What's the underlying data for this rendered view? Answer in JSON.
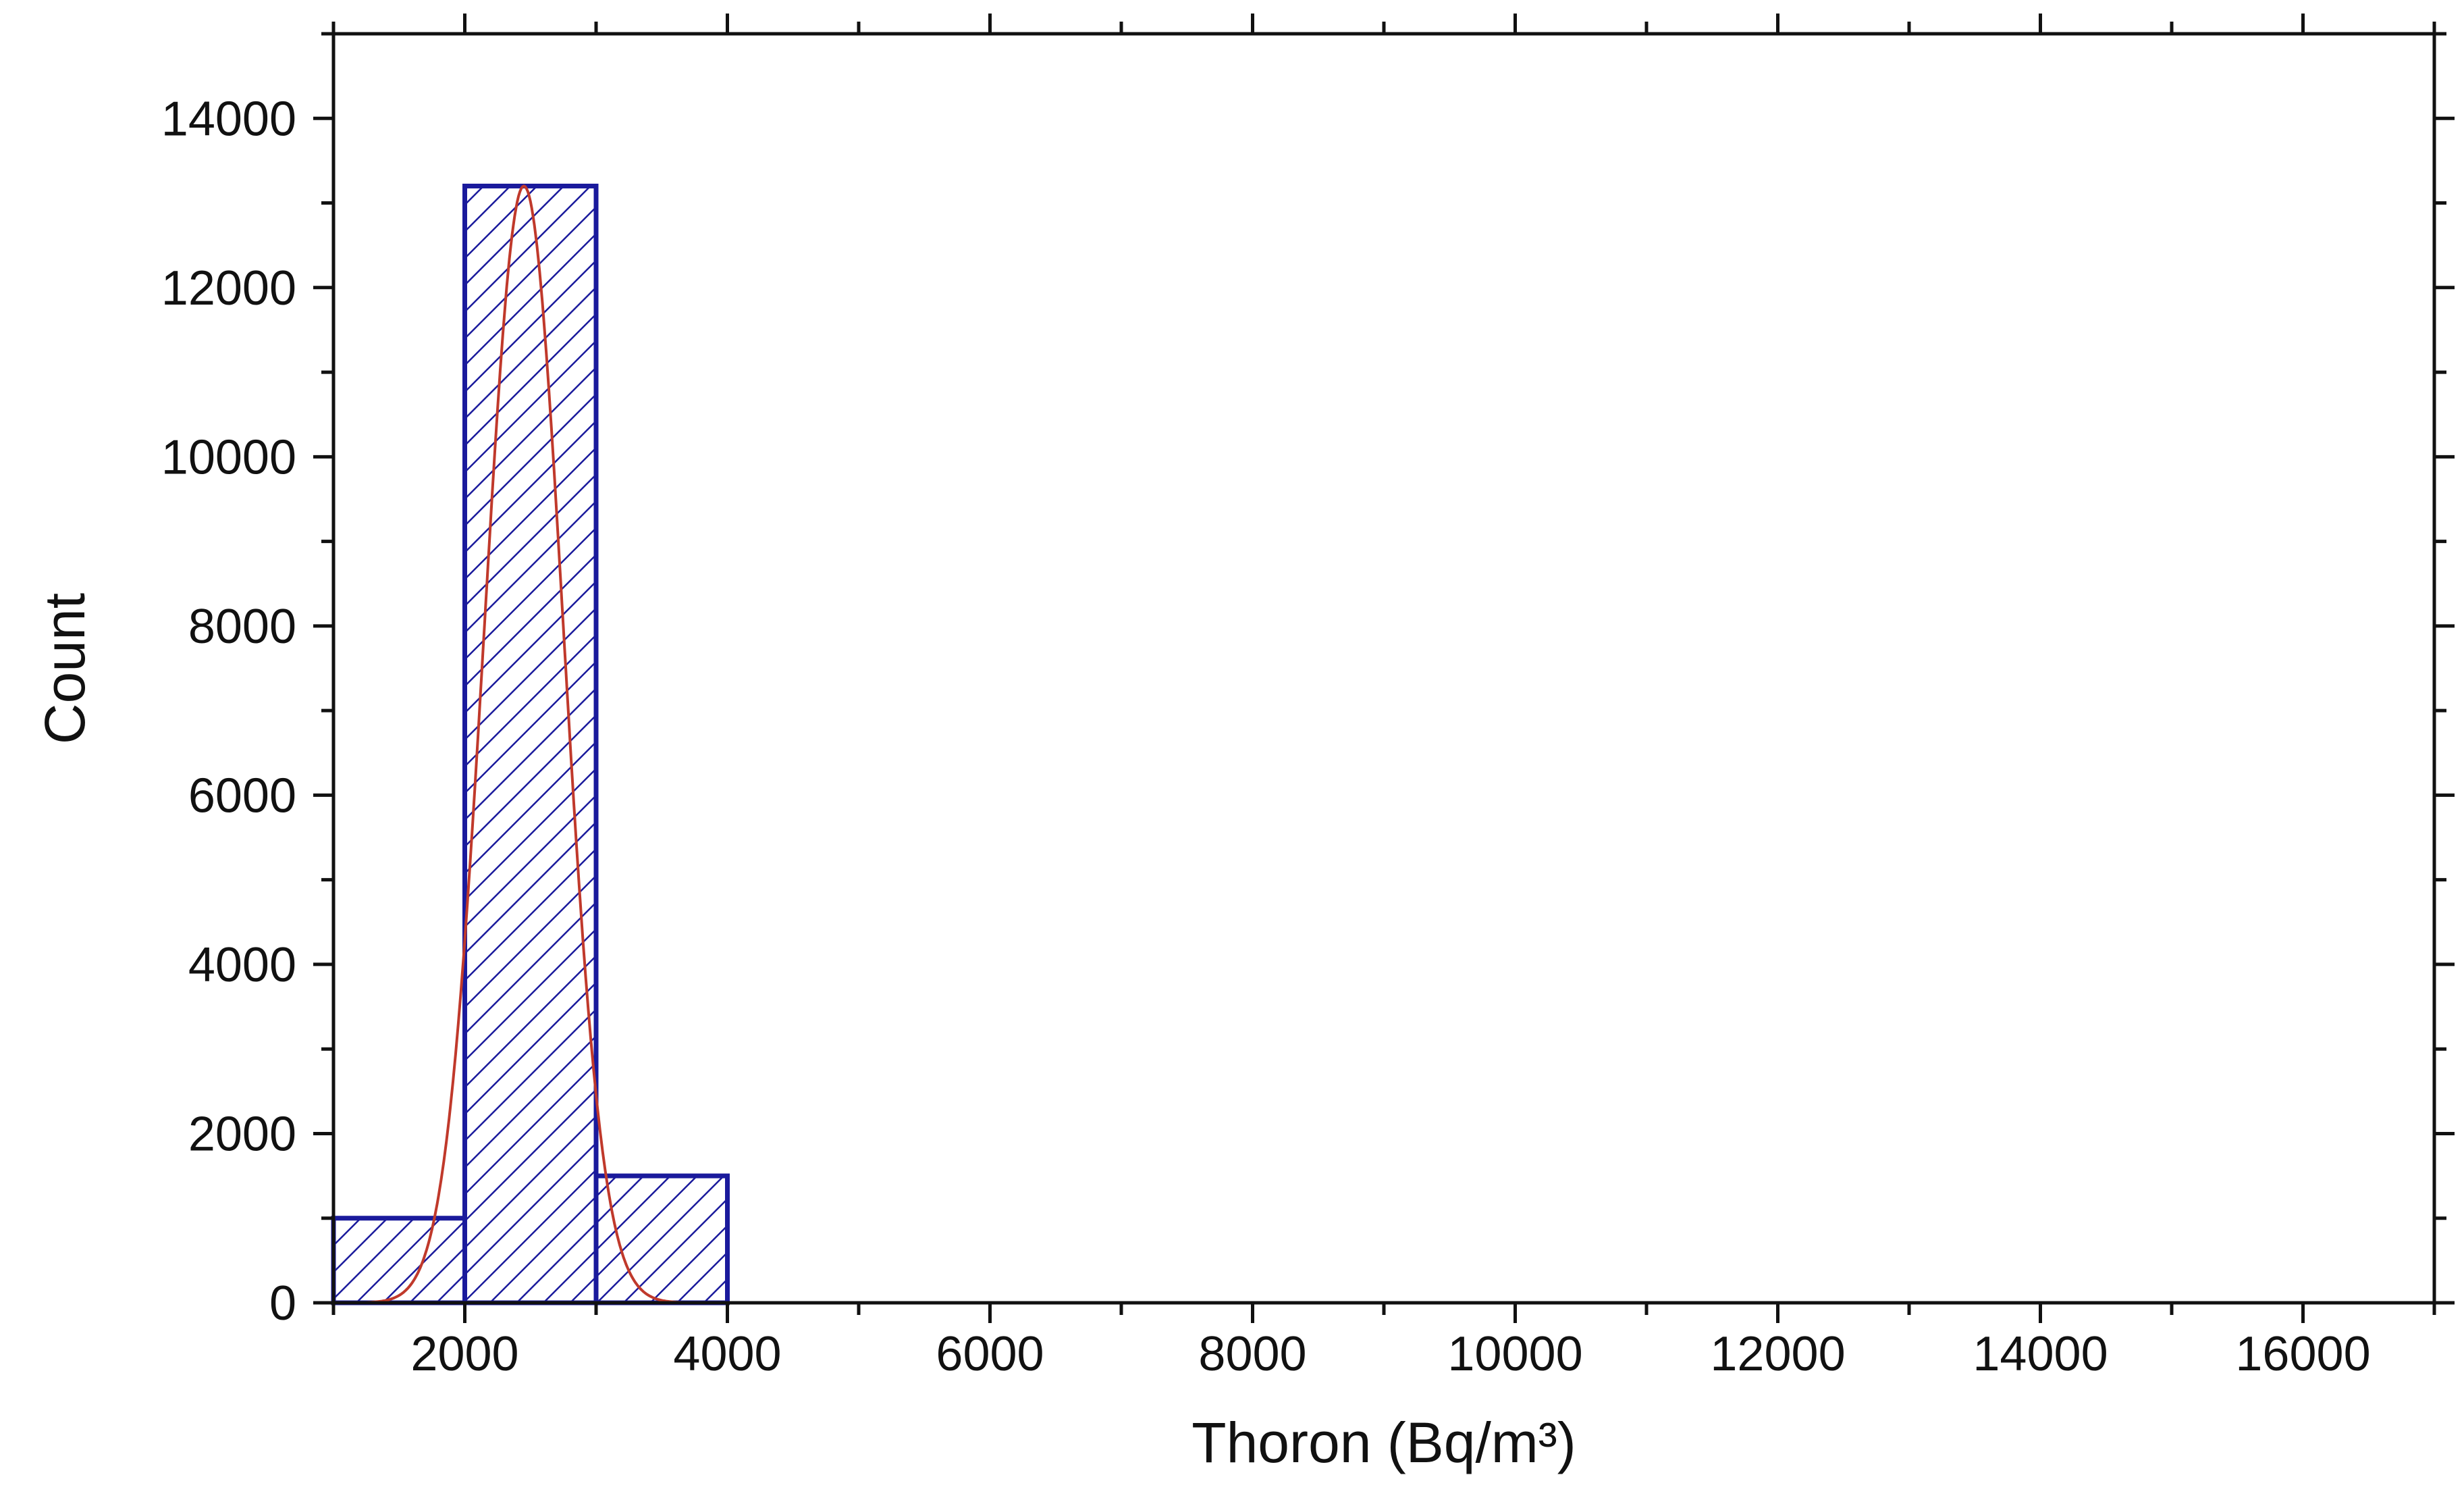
{
  "chart_data": {
    "type": "bar",
    "subtype": "histogram",
    "title": "",
    "xlabel": "Thoron (Bq/m³)",
    "ylabel": "Count",
    "xlim": [
      1000,
      17000
    ],
    "ylim": [
      0,
      15000
    ],
    "x_ticks": [
      2000,
      4000,
      6000,
      8000,
      10000,
      12000,
      14000,
      16000
    ],
    "x_tick_labels": [
      "2000",
      "4000",
      "6000",
      "8000",
      "10000",
      "12000",
      "14000",
      "16000"
    ],
    "y_ticks": [
      0,
      2000,
      4000,
      6000,
      8000,
      10000,
      12000,
      14000
    ],
    "y_tick_labels": [
      "0",
      "2000",
      "4000",
      "6000",
      "8000",
      "10000",
      "12000",
      "14000"
    ],
    "bins": [
      {
        "start": 1000,
        "end": 2000,
        "count": 1000
      },
      {
        "start": 2000,
        "end": 3000,
        "count": 13200
      },
      {
        "start": 3000,
        "end": 4000,
        "count": 1500
      }
    ],
    "fit": {
      "type": "normal",
      "mean": 2450,
      "sigma": 300,
      "peak": 13200
    },
    "grid": false,
    "legend": "none",
    "colors": {
      "bar_edge": "#1a1a9c",
      "hatch": "#1a1a9c",
      "fit_curve": "#c0392b",
      "axis": "#111111"
    }
  }
}
